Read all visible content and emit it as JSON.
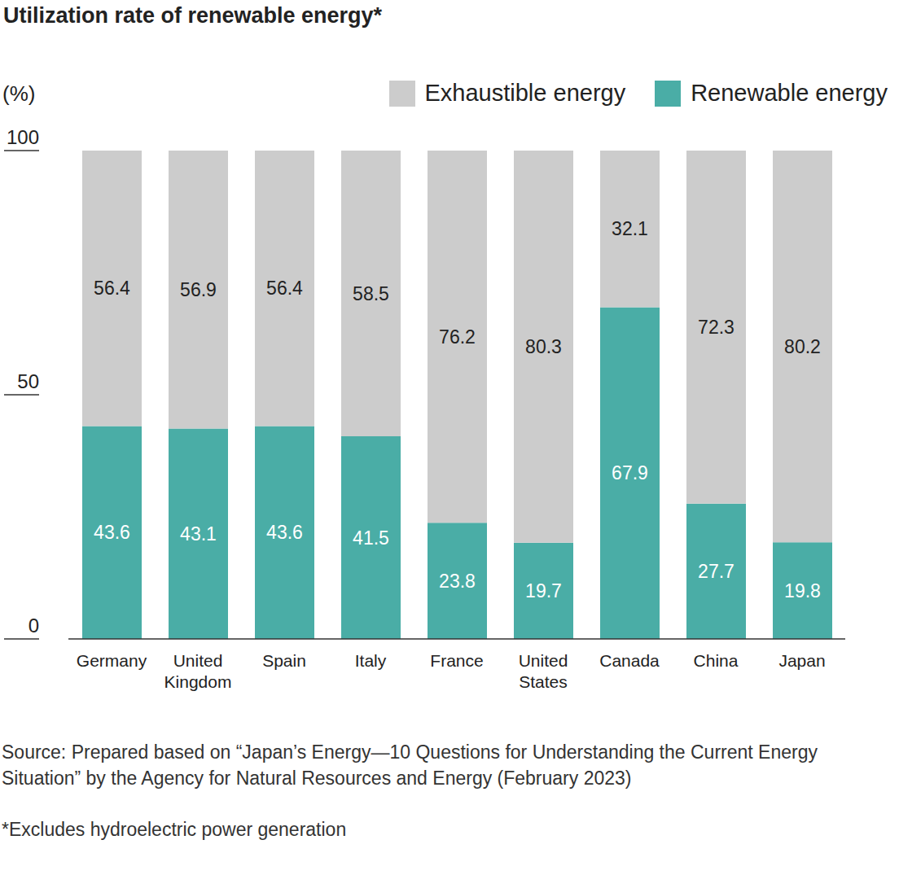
{
  "chart_data": {
    "type": "bar",
    "title": "Utilization rate of renewable energy*",
    "y_label": "(%)",
    "categories": [
      "Germany",
      "United Kingdom",
      "Spain",
      "Italy",
      "France",
      "United States",
      "Canada",
      "China",
      "Japan"
    ],
    "series": [
      {
        "name": "Exhaustible energy",
        "color": "#cccccc",
        "values": [
          56.4,
          56.9,
          56.4,
          58.5,
          76.2,
          80.3,
          32.1,
          72.3,
          80.2
        ]
      },
      {
        "name": "Renewable energy",
        "color": "#4aada6",
        "values": [
          43.6,
          43.1,
          43.6,
          41.5,
          23.8,
          19.7,
          67.9,
          27.7,
          19.8
        ]
      }
    ],
    "ylim": [
      0,
      100
    ],
    "yticks": [
      0,
      50,
      100
    ],
    "stacked": true,
    "data_labels": true,
    "grid": false,
    "legend": "top right",
    "source": "Source: Prepared based on “Japan’s Energy—10 Questions for Understanding the Current Energy Situation” by the Agency for Natural Resources and Energy (February 2023)",
    "note": "*Excludes hydroelectric power generation"
  }
}
